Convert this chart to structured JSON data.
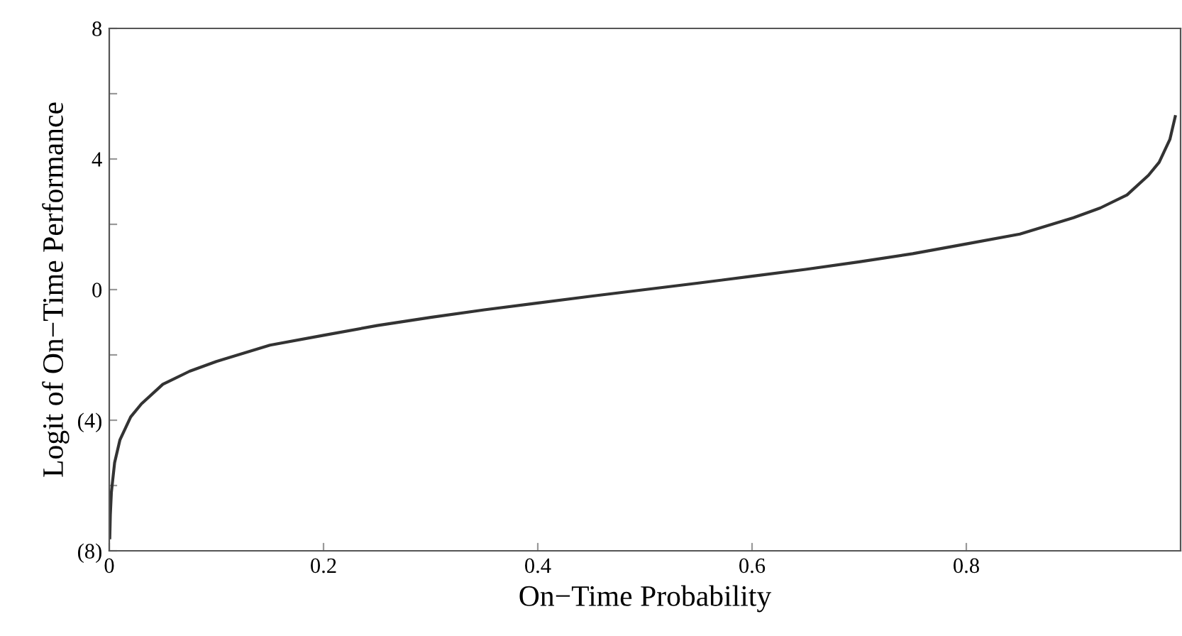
{
  "chart_data": {
    "type": "line",
    "xlabel": "On−Time Probability",
    "ylabel": "Logit of On−Time Performance",
    "x": [
      0.0005,
      0.001,
      0.002,
      0.005,
      0.01,
      0.02,
      0.03,
      0.05,
      0.075,
      0.1,
      0.15,
      0.2,
      0.25,
      0.3,
      0.35,
      0.4,
      0.45,
      0.5,
      0.55,
      0.6,
      0.65,
      0.7,
      0.75,
      0.8,
      0.85,
      0.9,
      0.925,
      0.95,
      0.97,
      0.98,
      0.99,
      0.995
    ],
    "series": [
      {
        "color": "#333333",
        "values": [
          -7.6,
          -6.9,
          -6.2,
          -5.3,
          -4.6,
          -3.9,
          -3.5,
          -2.9,
          -2.5,
          -2.2,
          -1.7,
          -1.4,
          -1.1,
          -0.85,
          -0.62,
          -0.41,
          -0.2,
          0,
          0.2,
          0.41,
          0.62,
          0.85,
          1.1,
          1.4,
          1.7,
          2.2,
          2.5,
          2.9,
          3.5,
          3.9,
          4.6,
          5.3
        ]
      }
    ],
    "xlim": [
      0,
      1
    ],
    "ylim": [
      -8,
      8
    ],
    "xticks": [
      0,
      0.2,
      0.4,
      0.6,
      0.8
    ],
    "yticks": [
      {
        "value": -8,
        "label": "(8)"
      },
      {
        "value": -6,
        "label": null
      },
      {
        "value": -4,
        "label": "(4)"
      },
      {
        "value": -2,
        "label": null
      },
      0,
      {
        "value": 2,
        "label": null
      },
      4,
      {
        "value": 6,
        "label": null
      },
      8
    ],
    "grid": false,
    "legend": false,
    "marker": "none",
    "line_style": "solid"
  }
}
